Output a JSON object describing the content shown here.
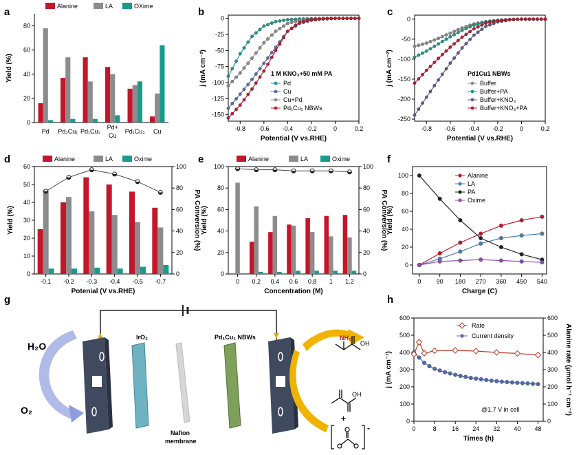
{
  "panels": {
    "a": {
      "label": "a"
    },
    "b": {
      "label": "b"
    },
    "c": {
      "label": "c"
    },
    "d": {
      "label": "d"
    },
    "e": {
      "label": "e"
    },
    "f": {
      "label": "f"
    },
    "g": {
      "label": "g"
    },
    "h": {
      "label": "h"
    }
  },
  "colors": {
    "alanine": "#c4162a",
    "la": "#8c8c8c",
    "oxime": "#1a9a8a",
    "pa": "#222222",
    "h_rate": "#c0392b",
    "h_cd": "#4e6bb0"
  },
  "chart_data": [
    {
      "id": "a",
      "type": "bar",
      "categories": [
        "Pd",
        "Pd2Cu1",
        "Pd1Cu1",
        "Pd+\nCu",
        "Pd1Cu2",
        "Cu"
      ],
      "series": [
        {
          "name": "Alanine",
          "values": [
            16,
            37,
            54,
            46,
            28,
            5
          ]
        },
        {
          "name": "LA",
          "values": [
            78,
            54,
            34,
            40,
            31,
            24
          ]
        },
        {
          "name": "OXime",
          "values": [
            2,
            3,
            3,
            6,
            34,
            64
          ]
        }
      ],
      "ylabel": "Yield (%)",
      "ylim": [
        0,
        90
      ],
      "yticks": [
        0,
        20,
        40,
        60,
        80
      ]
    },
    {
      "id": "b",
      "type": "line",
      "xlabel": "Potential (V vs.RHE)",
      "ylabel": "j (mA cm⁻²)",
      "xlim": [
        -0.9,
        0.2
      ],
      "ylim": [
        -160,
        5
      ],
      "xticks": [
        -0.8,
        -0.6,
        -0.4,
        -0.2,
        0.0,
        0.2
      ],
      "yticks": [
        0,
        -25,
        -50,
        -75,
        -100,
        -125,
        -150
      ],
      "annotation": "1 M KNO₃+50 mM PA",
      "series": [
        {
          "name": "Pd",
          "color": "#1a9a8a",
          "x": [
            -0.9,
            -0.8,
            -0.7,
            -0.6,
            -0.5,
            -0.4,
            -0.3,
            -0.2,
            -0.1,
            0.0,
            0.1,
            0.2
          ],
          "y": [
            -90,
            -55,
            -28,
            -12,
            -5,
            -2,
            -1,
            -0.5,
            0,
            0,
            0,
            0
          ]
        },
        {
          "name": "Cu",
          "color": "#5b6aa8",
          "x": [
            -0.9,
            -0.8,
            -0.7,
            -0.6,
            -0.5,
            -0.4,
            -0.3,
            -0.2,
            -0.1,
            0.0,
            0.1,
            0.2
          ],
          "y": [
            -140,
            -118,
            -95,
            -70,
            -45,
            -20,
            -8,
            -3,
            -1,
            0,
            0,
            0
          ]
        },
        {
          "name": "Cu+Pd",
          "color": "#8c8c8c",
          "x": [
            -0.9,
            -0.8,
            -0.7,
            -0.6,
            -0.5,
            -0.4,
            -0.3,
            -0.2,
            -0.1,
            0.0,
            0.1,
            0.2
          ],
          "y": [
            -105,
            -85,
            -62,
            -38,
            -20,
            -8,
            -3,
            -1,
            0,
            0,
            0,
            0
          ]
        },
        {
          "name": "Pd1Cu1 NBWs",
          "color": "#c4162a",
          "x": [
            -0.9,
            -0.8,
            -0.7,
            -0.6,
            -0.5,
            -0.4,
            -0.3,
            -0.2,
            -0.1,
            0.0,
            0.1,
            0.2
          ],
          "y": [
            -155,
            -135,
            -110,
            -82,
            -50,
            -20,
            -6,
            -2,
            -1,
            0,
            0,
            0
          ]
        }
      ]
    },
    {
      "id": "c",
      "type": "line",
      "xlabel": "Potential (V vs.RHE)",
      "ylabel": "j (mA cm⁻²)",
      "xlim": [
        -0.9,
        0.2
      ],
      "ylim": [
        -255,
        10
      ],
      "xticks": [
        -0.8,
        -0.6,
        -0.4,
        -0.2,
        0.0,
        0.2
      ],
      "yticks": [
        0,
        -50,
        -100,
        -150,
        -200,
        -250
      ],
      "annotation": "Pd1Cu1 NBWs",
      "series": [
        {
          "name": "Buffer",
          "color": "#8c8c8c",
          "x": [
            -0.9,
            -0.8,
            -0.7,
            -0.6,
            -0.5,
            -0.4,
            -0.3,
            -0.2,
            -0.1,
            0.0,
            0.1,
            0.2
          ],
          "y": [
            -68,
            -60,
            -48,
            -35,
            -22,
            -12,
            -6,
            -3,
            -1,
            0,
            0,
            0
          ]
        },
        {
          "name": "Buffer+PA",
          "color": "#1a9a8a",
          "x": [
            -0.9,
            -0.8,
            -0.7,
            -0.6,
            -0.5,
            -0.4,
            -0.3,
            -0.2,
            -0.1,
            0.0,
            0.1,
            0.2
          ],
          "y": [
            -95,
            -80,
            -62,
            -44,
            -28,
            -15,
            -7,
            -3,
            -1,
            0,
            0,
            0
          ]
        },
        {
          "name": "Buffer+KNO3",
          "color": "#5b5b8c",
          "x": [
            -0.9,
            -0.8,
            -0.7,
            -0.6,
            -0.5,
            -0.4,
            -0.3,
            -0.2,
            -0.1,
            0.0,
            0.1,
            0.2
          ],
          "y": [
            -240,
            -195,
            -152,
            -110,
            -72,
            -40,
            -18,
            -7,
            -2,
            0,
            0,
            0
          ]
        },
        {
          "name": "Buffer+KNO3+PA",
          "color": "#c4162a",
          "x": [
            -0.9,
            -0.8,
            -0.7,
            -0.6,
            -0.5,
            -0.4,
            -0.3,
            -0.2,
            -0.1,
            0.0,
            0.1,
            0.2
          ],
          "y": [
            -160,
            -128,
            -98,
            -70,
            -45,
            -24,
            -10,
            -4,
            -1,
            0,
            0,
            0
          ]
        }
      ]
    },
    {
      "id": "d",
      "type": "bar",
      "xlabel": "Potenial (V vs.RHE)",
      "ylabel": "Yield (%)",
      "y2label": "PA Conversion (%)",
      "categories": [
        "-0.1",
        "-0.2",
        "-0.3",
        "-0.4",
        "-0.5",
        "-0.7"
      ],
      "ylim": [
        0,
        60
      ],
      "yticks": [
        0,
        10,
        20,
        30,
        40,
        50,
        60
      ],
      "y2lim": [
        0,
        100
      ],
      "y2ticks": [
        0,
        20,
        40,
        60,
        80,
        100
      ],
      "series": [
        {
          "name": "Alanine",
          "values": [
            25,
            40,
            54,
            50,
            46,
            37
          ]
        },
        {
          "name": "LA",
          "values": [
            47,
            43,
            35,
            33,
            29,
            26
          ]
        },
        {
          "name": "Oxime",
          "values": [
            3,
            3,
            3.5,
            3,
            4,
            5
          ]
        }
      ],
      "conversion": [
        77,
        90,
        97,
        93,
        86,
        76
      ]
    },
    {
      "id": "e",
      "type": "bar",
      "xlabel": "Concentration (M)",
      "ylabel": "Yield (%)",
      "y2label": "PA Conversion (%)",
      "categories": [
        "0",
        "0.2",
        "0.4",
        "0.6",
        "0.8",
        "1",
        "1.2"
      ],
      "ylim": [
        0,
        100
      ],
      "yticks": [
        0,
        20,
        40,
        60,
        80,
        100
      ],
      "y2lim": [
        0,
        100
      ],
      "y2ticks": [
        0,
        20,
        40,
        60,
        80,
        100
      ],
      "series": [
        {
          "name": "Alanine",
          "values": [
            0,
            30,
            39,
            46,
            52,
            54,
            55
          ]
        },
        {
          "name": "LA",
          "values": [
            85,
            63,
            54,
            45,
            39,
            35,
            34
          ]
        },
        {
          "name": "Oxime",
          "values": [
            0,
            2,
            2,
            3,
            3,
            3,
            3
          ]
        }
      ],
      "conversion": [
        98,
        97,
        97,
        96,
        96,
        96,
        95
      ]
    },
    {
      "id": "f",
      "type": "line",
      "xlabel": "Charge (C)",
      "ylabel": "Yield (%)",
      "xlim": [
        -30,
        560
      ],
      "ylim": [
        -10,
        110
      ],
      "xticks": [
        0,
        90,
        180,
        270,
        360,
        450,
        540
      ],
      "yticks": [
        0,
        20,
        40,
        60,
        80,
        100
      ],
      "series": [
        {
          "name": "Alanine",
          "color": "#c4162a",
          "x": [
            0,
            90,
            180,
            270,
            360,
            450,
            540
          ],
          "y": [
            0,
            13,
            25,
            35,
            44,
            50,
            54
          ]
        },
        {
          "name": "LA",
          "color": "#4e7fb0",
          "x": [
            0,
            90,
            180,
            270,
            360,
            450,
            540
          ],
          "y": [
            0,
            7,
            15,
            24,
            30,
            33,
            35
          ]
        },
        {
          "name": "PA",
          "color": "#222222",
          "x": [
            0,
            90,
            180,
            270,
            360,
            450,
            540
          ],
          "y": [
            100,
            74,
            50,
            30,
            20,
            12,
            6
          ]
        },
        {
          "name": "Oxime",
          "color": "#8c4fb0",
          "x": [
            0,
            90,
            180,
            270,
            360,
            450,
            540
          ],
          "y": [
            0,
            4,
            5,
            6,
            5,
            4,
            3
          ]
        }
      ]
    },
    {
      "id": "h",
      "type": "line",
      "xlabel": "Times (h)",
      "ylabel": "j (mA cm⁻¹)",
      "y2label": "Alanine rate (μmol h⁻¹ cm⁻²)",
      "xlim": [
        0,
        50
      ],
      "ylim": [
        0,
        600
      ],
      "y2lim": [
        0,
        600
      ],
      "xticks": [
        0,
        8,
        16,
        24,
        32,
        40,
        48
      ],
      "yticks": [
        0,
        100,
        200,
        300,
        400,
        500,
        600
      ],
      "y2ticks": [
        0,
        100,
        200,
        300,
        400,
        500,
        600
      ],
      "annotation": "@1.7 V in cell",
      "series": [
        {
          "name": "Rate",
          "color": "#c0392b",
          "axis": "right",
          "x": [
            0,
            2,
            4,
            8,
            16,
            24,
            32,
            40,
            48
          ],
          "y": [
            390,
            460,
            395,
            410,
            412,
            408,
            400,
            394,
            385
          ]
        },
        {
          "name": "Current density",
          "color": "#4e6bb0",
          "axis": "left",
          "x": [
            0,
            2,
            4,
            6,
            8,
            10,
            12,
            14,
            16,
            18,
            20,
            22,
            24,
            26,
            28,
            30,
            32,
            34,
            36,
            38,
            40,
            42,
            44,
            46,
            48
          ],
          "y": [
            400,
            370,
            340,
            320,
            305,
            295,
            285,
            278,
            270,
            264,
            258,
            252,
            248,
            244,
            240,
            236,
            233,
            230,
            228,
            226,
            224,
            222,
            220,
            218,
            216
          ]
        }
      ]
    }
  ],
  "texts": {
    "a_leg": [
      "Alanine",
      "LA",
      "OXime"
    ],
    "a_cats": [
      "Pd",
      "Pd₂Cu₁",
      "Pd₁Cu₁",
      "Pd+",
      "Cu",
      "Pd₁Cu₂",
      "Cu"
    ],
    "b_leg": [
      "Pd",
      "Cu",
      "Cu+Pd",
      "Pd₁Cu₁ NBWs"
    ],
    "c_leg": [
      "Buffer",
      "Buffer+PA",
      "Buffer+KNO₃",
      "Buffer+KNO₃+PA"
    ],
    "de_leg": [
      "Alanine",
      "LA",
      "Oxime"
    ],
    "f_leg": [
      "Alanine",
      "LA",
      "PA",
      "Oxime"
    ],
    "h_leg": [
      "Rate",
      "Current density"
    ]
  },
  "diagram": {
    "h2o": "H₂O",
    "o2": "O₂",
    "iro2": "IrO₂",
    "nbws": "Pd₁Cu₁ NBWs",
    "nafion1": "Nafion",
    "nafion2": "membrane",
    "nh2": "NH₂",
    "oh1": "OH",
    "oh2": "OH",
    "plus": "+",
    "minus": "-"
  }
}
